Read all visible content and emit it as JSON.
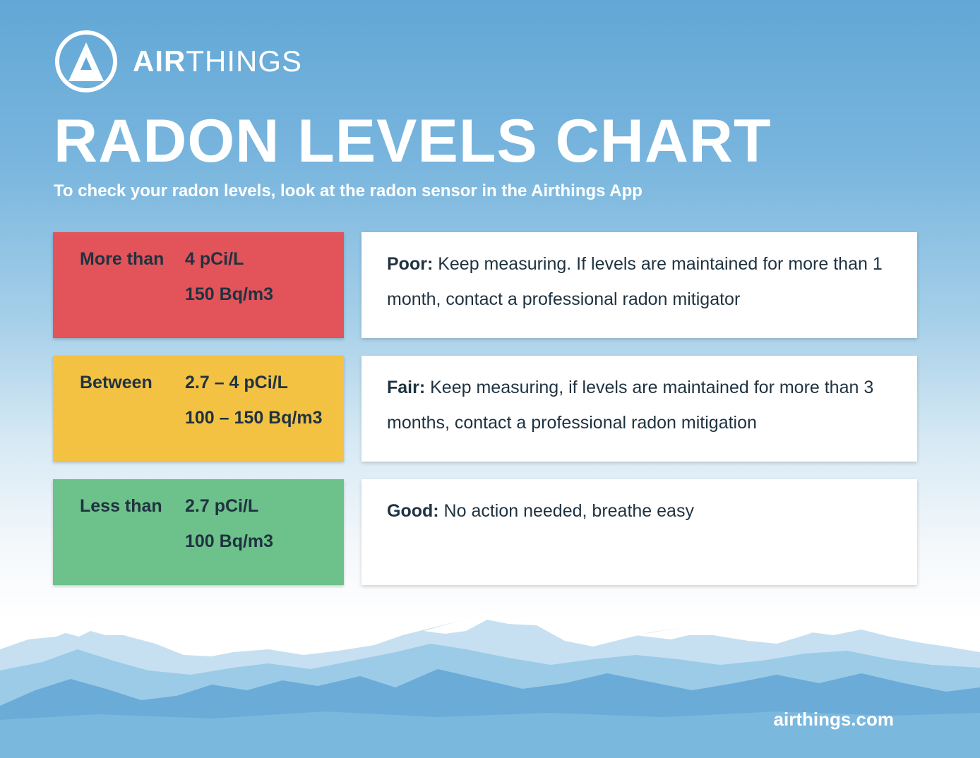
{
  "brand": {
    "name_bold": "AIR",
    "name_light": "THINGS",
    "color_primary": "#62a7d6",
    "icon": "airthings-a-logo-icon"
  },
  "title": "RADON LEVELS CHART",
  "subtitle": "To check your radon levels, look at the radon sensor in the Airthings App",
  "levels": [
    {
      "comparator": "More than",
      "value_pci": "4 pCi/L",
      "value_bq": "150 Bq/m3",
      "color": "#e2535a",
      "rating": "Poor:",
      "description": " Keep measuring. If levels are maintained for more than 1 month, contact a professional radon mitigator"
    },
    {
      "comparator": "Between",
      "value_pci": "2.7 – 4 pCi/L",
      "value_bq": "100 – 150 Bq/m3",
      "color": "#f4c243",
      "rating": "Fair:",
      "description": " Keep measuring, if levels are maintained for more than 3 months, contact a professional radon mitigation"
    },
    {
      "comparator": "Less than",
      "value_pci": "2.7 pCi/L",
      "value_bq": "100 Bq/m3",
      "color": "#6dc18a",
      "rating": "Good:",
      "description": " No action needed, breathe easy"
    }
  ],
  "footer": {
    "url": "airthings.com"
  }
}
